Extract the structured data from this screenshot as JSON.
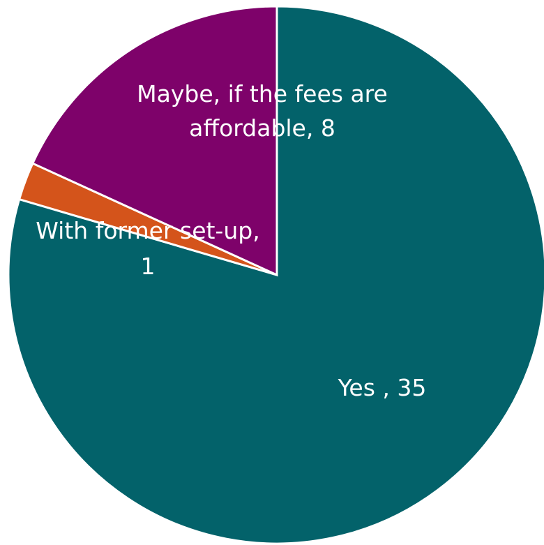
{
  "chart_data": {
    "type": "pie",
    "title": "",
    "categories": [
      "Yes",
      "With former set-up",
      "Maybe, if the fees are affordable"
    ],
    "values": [
      35,
      1,
      8
    ],
    "colors": [
      "#03626a",
      "#d4541b",
      "#7e026a"
    ],
    "labels": [
      [
        "Yes , 35"
      ],
      [
        "With former set-up,",
        "1"
      ],
      [
        "Maybe, if the fees are",
        "affordable, 8"
      ]
    ],
    "start_angle_deg": 0,
    "direction": "clockwise",
    "legend": "none"
  }
}
